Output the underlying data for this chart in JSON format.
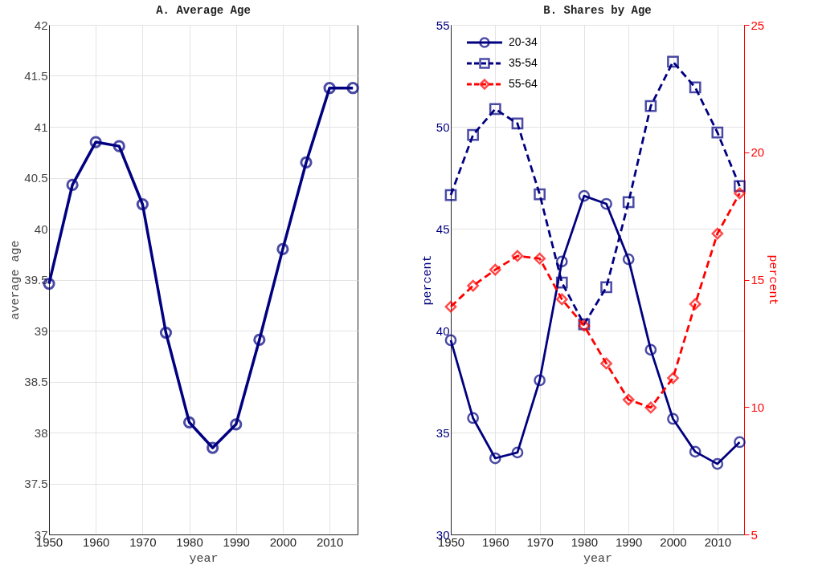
{
  "chart_data": [
    {
      "type": "line",
      "title": "A. Average Age",
      "xlabel": "year",
      "ylabel": "average age",
      "x": [
        1950,
        1955,
        1960,
        1965,
        1970,
        1975,
        1980,
        1985,
        1990,
        1995,
        2000,
        2005,
        2010,
        2015
      ],
      "series": [
        {
          "color": "#000080",
          "marker": "circle",
          "line_style": "solid",
          "values": [
            39.46,
            40.43,
            40.85,
            40.81,
            40.24,
            38.98,
            38.1,
            37.85,
            38.08,
            38.91,
            39.8,
            40.65,
            41.38,
            41.38
          ]
        }
      ],
      "xlim": [
        1950,
        2016
      ],
      "xticks": [
        1950,
        1960,
        1970,
        1980,
        1990,
        2000,
        2010
      ],
      "ylim": [
        37,
        42
      ],
      "yticks": [
        37,
        37.5,
        38,
        38.5,
        39,
        39.5,
        40,
        40.5,
        41,
        41.5,
        42
      ],
      "grid": true
    },
    {
      "type": "line",
      "title": "B. Shares by Age",
      "xlabel": "year",
      "ylabel": "percent",
      "y2label": "percent",
      "x": [
        1950,
        1955,
        1960,
        1965,
        1970,
        1975,
        1980,
        1985,
        1990,
        1995,
        2000,
        2005,
        2010,
        2015
      ],
      "series": [
        {
          "name": "20-34",
          "color": "#000080",
          "marker": "circle",
          "line_style": "solid",
          "values": [
            39.53,
            35.71,
            33.74,
            34.02,
            37.56,
            43.39,
            46.61,
            46.22,
            43.5,
            39.06,
            35.67,
            34.06,
            33.46,
            34.53
          ]
        },
        {
          "name": "35-54",
          "color": "#000080",
          "marker": "square",
          "line_style": "dashed",
          "values": [
            46.65,
            49.6,
            50.87,
            50.16,
            46.69,
            42.36,
            40.31,
            42.13,
            46.3,
            51.02,
            53.19,
            51.93,
            49.72,
            47.09
          ]
        },
        {
          "name": "55-64",
          "color": "#ff0000",
          "marker": "diamond",
          "line_style": "dashed",
          "axis": "y2",
          "values": [
            13.94,
            14.76,
            15.39,
            15.93,
            15.83,
            14.23,
            13.19,
            11.71,
            10.29,
            9.98,
            11.14,
            14.04,
            16.81,
            18.39
          ]
        }
      ],
      "xlim": [
        1950,
        2016
      ],
      "xticks": [
        1950,
        1960,
        1970,
        1980,
        1990,
        2000,
        2010
      ],
      "ylim": [
        30,
        55
      ],
      "yticks": [
        30,
        35,
        40,
        45,
        50,
        55
      ],
      "y2lim": [
        5,
        25
      ],
      "y2ticks": [
        5,
        10,
        15,
        20,
        25
      ],
      "grid": true,
      "legend": "top left"
    }
  ]
}
